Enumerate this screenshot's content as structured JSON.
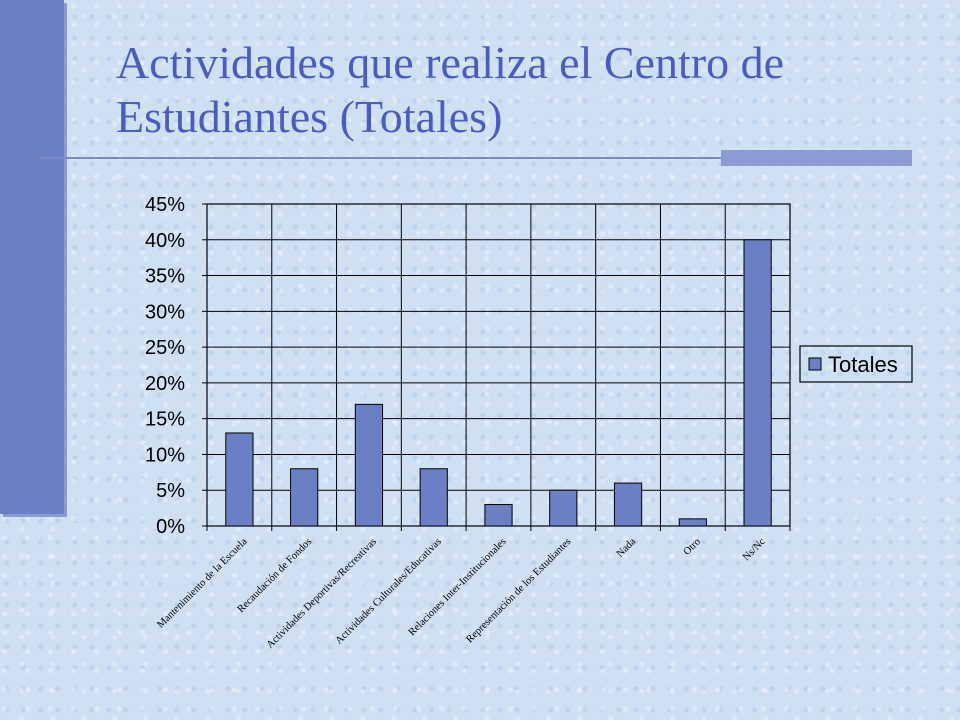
{
  "slide": {
    "title_line1": "Actividades que realiza el Centro de",
    "title_line2": "Estudiantes (Totales)",
    "colors": {
      "accent_bar": "#6b7fc4",
      "title": "#4a5dbd",
      "bar_fill": "#6b7fc4"
    }
  },
  "chart_data": {
    "type": "bar",
    "categories": [
      "Mantenimiento de la Escuela",
      "Recaudación de Fondos",
      "Actividades Deportivas/Recreativas",
      "Actividades Culturales/Educativas",
      "Relaciones Inter-Institucionales",
      "Representación de los Estudiantes",
      "Nada",
      "Otro",
      "Ns/Nc"
    ],
    "series": [
      {
        "name": "Totales",
        "values": [
          0.13,
          0.08,
          0.17,
          0.08,
          0.03,
          0.05,
          0.06,
          0.01,
          0.4
        ]
      }
    ],
    "yticks": [
      "0%",
      "5%",
      "10%",
      "15%",
      "20%",
      "25%",
      "30%",
      "35%",
      "40%",
      "45%"
    ],
    "ylim": [
      0,
      0.45
    ],
    "grid": true,
    "legend": "right"
  }
}
